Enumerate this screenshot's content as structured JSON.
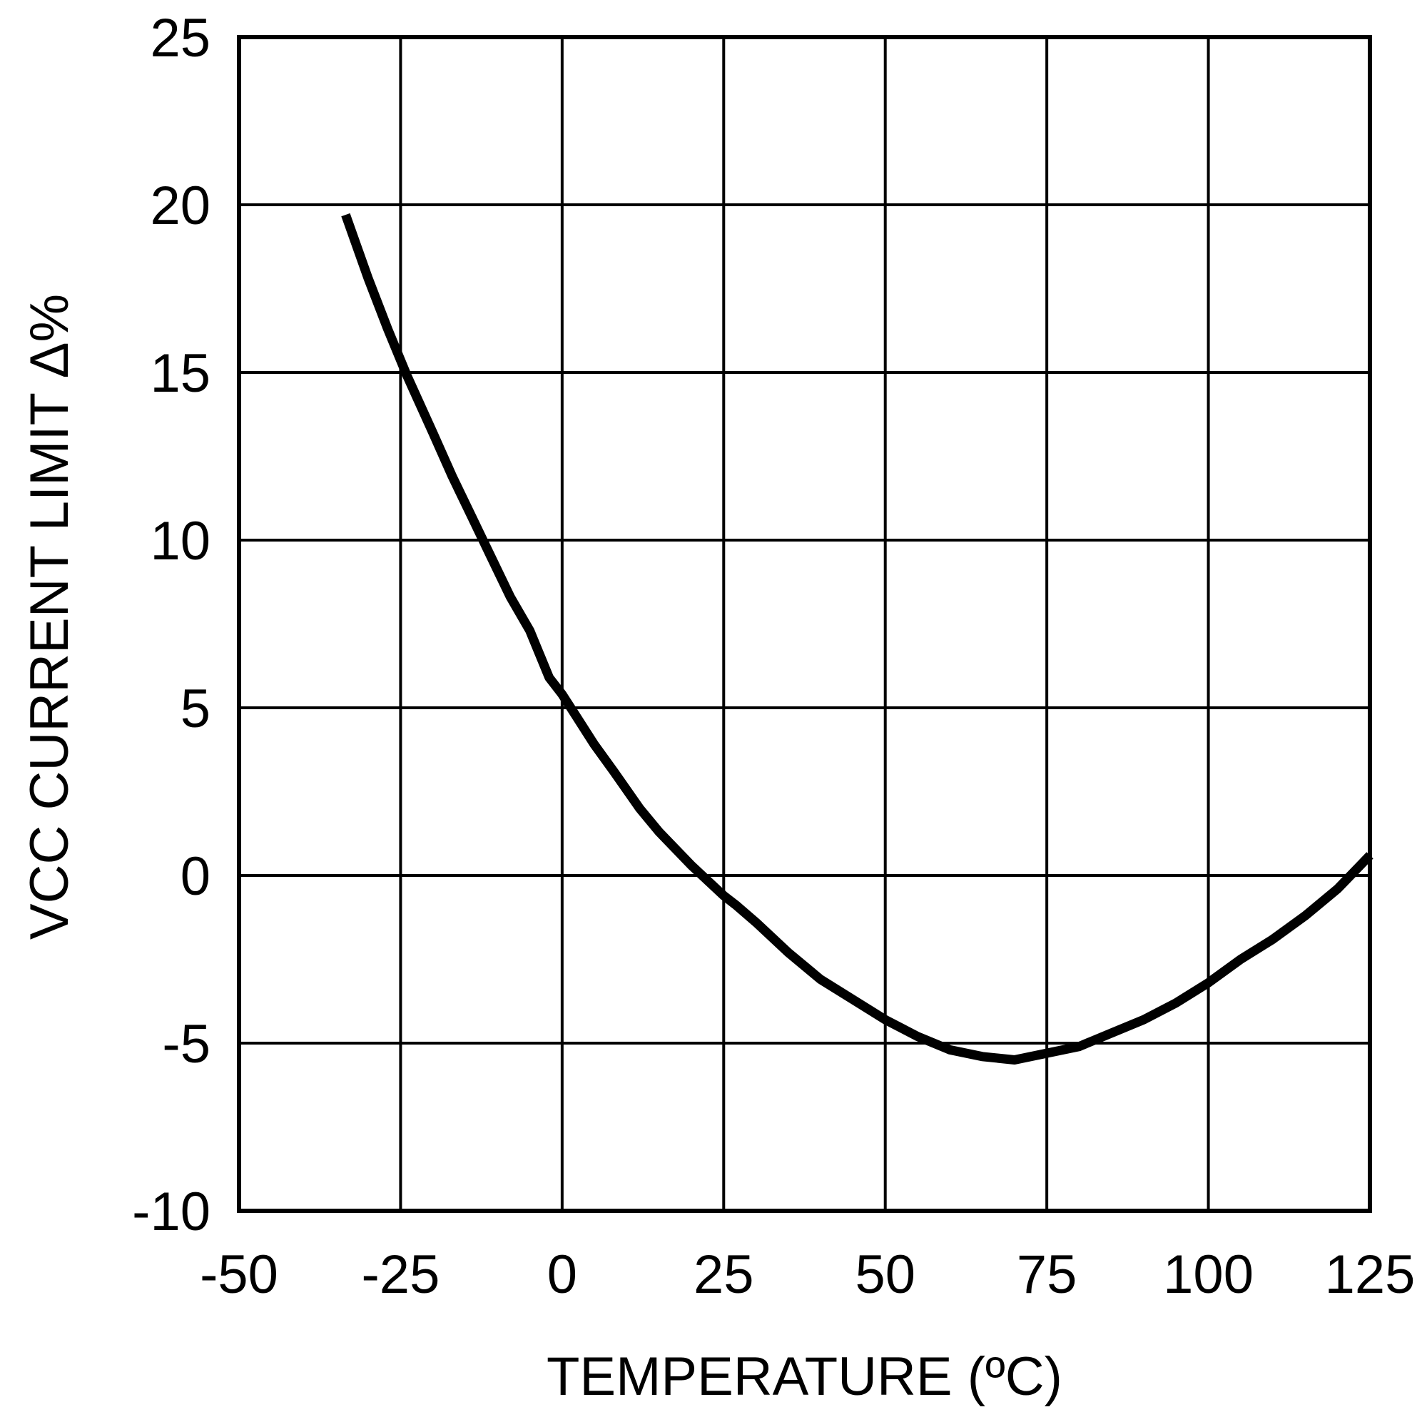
{
  "chart_data": {
    "type": "line",
    "title": "",
    "xlabel": "TEMPERATURE (ºC)",
    "ylabel": "VCC CURRENT LIMIT Δ%",
    "xlim": [
      -50,
      125
    ],
    "ylim": [
      -10,
      25
    ],
    "x_ticks": [
      -50,
      -25,
      0,
      25,
      50,
      75,
      100,
      125
    ],
    "y_ticks": [
      -10,
      -5,
      0,
      5,
      10,
      15,
      20,
      25
    ],
    "x_tick_labels": [
      "-50",
      "-25",
      "0",
      "25",
      "50",
      "75",
      "100",
      "125"
    ],
    "y_tick_labels": [
      "-10",
      "-5",
      "0",
      "5",
      "10",
      "15",
      "20",
      "25"
    ],
    "grid": true,
    "legend": "none",
    "series": [
      {
        "name": "VCC current limit change",
        "color": "#000000",
        "x": [
          -33.5,
          -30,
          -27,
          -24,
          -20,
          -17,
          -14,
          -11,
          -8,
          -5,
          -2,
          0,
          2,
          5,
          8,
          12,
          15,
          20,
          25,
          27,
          30,
          35,
          40,
          45,
          50,
          55,
          60,
          65,
          70,
          75,
          80,
          85,
          90,
          95,
          100,
          105,
          110,
          115,
          120,
          125
        ],
        "values": [
          19.7,
          17.8,
          16.3,
          14.9,
          13.2,
          11.9,
          10.7,
          9.5,
          8.3,
          7.3,
          5.9,
          5.4,
          4.8,
          3.9,
          3.1,
          2.0,
          1.3,
          0.3,
          -0.6,
          -0.9,
          -1.4,
          -2.3,
          -3.1,
          -3.7,
          -4.3,
          -4.8,
          -5.2,
          -5.4,
          -5.5,
          -5.3,
          -5.1,
          -4.7,
          -4.3,
          -3.8,
          -3.2,
          -2.5,
          -1.9,
          -1.2,
          -0.4,
          0.6
        ]
      }
    ]
  }
}
